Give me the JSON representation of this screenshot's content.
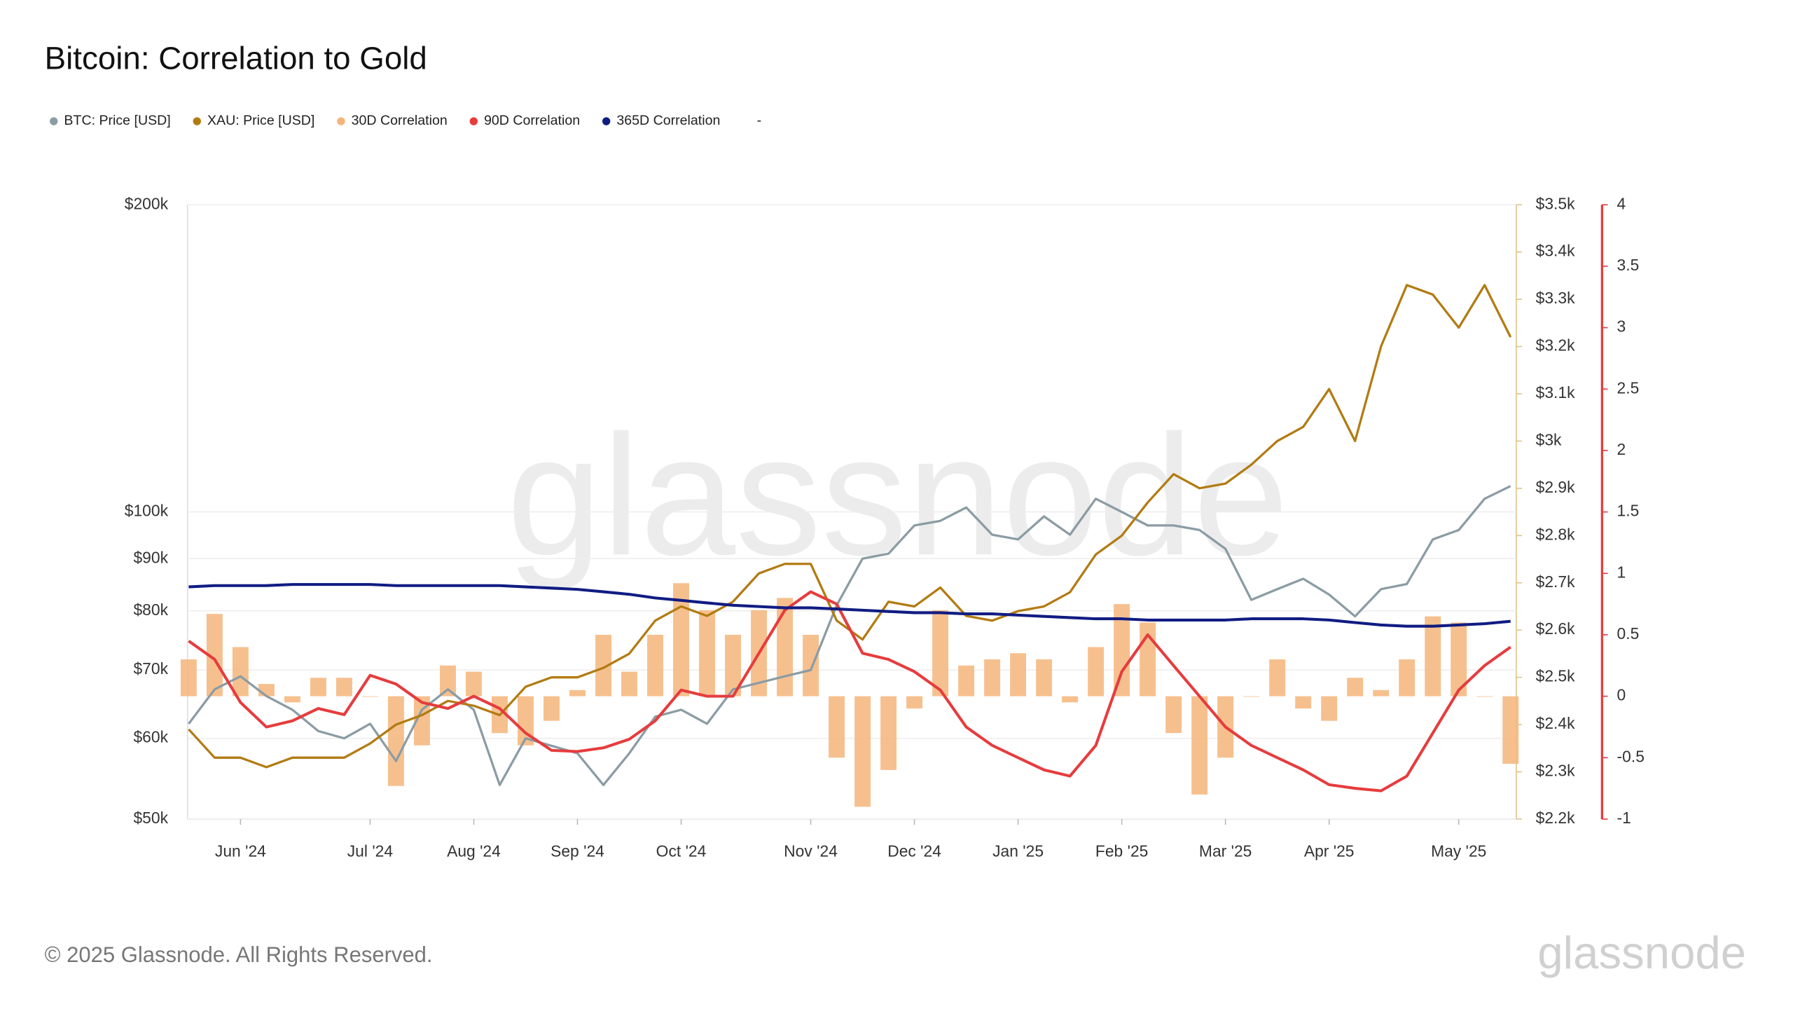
{
  "chart_data": {
    "type": "combo",
    "title": "Bitcoin: Correlation to Gold",
    "watermark": "glassnode",
    "footer": "© 2025 Glassnode. All Rights Reserved.",
    "logo": "glassnode",
    "legend_note": "-",
    "categories": [
      null,
      null,
      "Jun '24",
      null,
      null,
      null,
      null,
      "Jul '24",
      null,
      null,
      null,
      "Aug '24",
      null,
      null,
      null,
      "Sep '24",
      null,
      null,
      null,
      "Oct '24",
      null,
      null,
      null,
      null,
      "Nov '24",
      null,
      null,
      null,
      "Dec '24",
      null,
      null,
      null,
      "Jan '25",
      null,
      null,
      null,
      "Feb '25",
      null,
      null,
      null,
      "Mar '25",
      null,
      null,
      null,
      "Apr '25",
      null,
      null,
      null,
      null,
      "May '25",
      null,
      null
    ],
    "ylog": true,
    "ylim": [
      50000,
      200000
    ],
    "yticks": [
      {
        "value": 50000,
        "label": "$50k"
      },
      {
        "value": 60000,
        "label": "$60k"
      },
      {
        "value": 70000,
        "label": "$70k"
      },
      {
        "value": 80000,
        "label": "$80k"
      },
      {
        "value": 90000,
        "label": "$90k"
      },
      {
        "value": 100000,
        "label": "$100k"
      },
      {
        "value": 200000,
        "label": "$200k"
      }
    ],
    "y2lim": [
      2200,
      3500
    ],
    "y2ticks": [
      {
        "value": 2200,
        "label": "$2.2k"
      },
      {
        "value": 2300,
        "label": "$2.3k"
      },
      {
        "value": 2400,
        "label": "$2.4k"
      },
      {
        "value": 2500,
        "label": "$2.5k"
      },
      {
        "value": 2600,
        "label": "$2.6k"
      },
      {
        "value": 2700,
        "label": "$2.7k"
      },
      {
        "value": 2800,
        "label": "$2.8k"
      },
      {
        "value": 2900,
        "label": "$2.9k"
      },
      {
        "value": 3000,
        "label": "$3k"
      },
      {
        "value": 3100,
        "label": "$3.1k"
      },
      {
        "value": 3200,
        "label": "$3.2k"
      },
      {
        "value": 3300,
        "label": "$3.3k"
      },
      {
        "value": 3400,
        "label": "$3.4k"
      },
      {
        "value": 3500,
        "label": "$3.5k"
      }
    ],
    "y3lim": [
      -1,
      4
    ],
    "y3ticks": [
      -1,
      -0.5,
      0,
      0.5,
      1,
      1.5,
      2,
      2.5,
      3,
      3.5,
      4
    ],
    "grid": true,
    "series": [
      {
        "name": "BTC: Price [USD]",
        "type": "line",
        "axis": "y",
        "color": "#8b9ca4",
        "values": [
          62000,
          67000,
          69000,
          66000,
          64000,
          61000,
          60000,
          62000,
          57000,
          64000,
          67000,
          64000,
          54000,
          60000,
          59000,
          58000,
          54000,
          58000,
          63000,
          64000,
          62000,
          67000,
          68000,
          69000,
          70000,
          81000,
          90000,
          91000,
          97000,
          98000,
          101000,
          95000,
          94000,
          99000,
          95000,
          103000,
          100000,
          97000,
          97000,
          96000,
          92000,
          82000,
          84000,
          86000,
          83000,
          79000,
          84000,
          85000,
          94000,
          96000,
          103000,
          106000
        ]
      },
      {
        "name": "XAU: Price [USD]",
        "type": "line",
        "axis": "y2",
        "color": "#b27b12",
        "values": [
          2390,
          2330,
          2330,
          2310,
          2330,
          2330,
          2330,
          2360,
          2400,
          2420,
          2450,
          2440,
          2420,
          2480,
          2500,
          2500,
          2520,
          2550,
          2620,
          2650,
          2630,
          2660,
          2720,
          2740,
          2740,
          2620,
          2580,
          2660,
          2650,
          2690,
          2630,
          2620,
          2640,
          2650,
          2680,
          2760,
          2800,
          2870,
          2930,
          2900,
          2910,
          2950,
          3000,
          3030,
          3110,
          3000,
          3200,
          3330,
          3310,
          3240,
          3330,
          3220
        ]
      },
      {
        "name": "30D Correlation",
        "type": "bar",
        "axis": "y3",
        "color": "#f5b57a",
        "values": [
          0.3,
          0.67,
          0.4,
          0.1,
          -0.05,
          0.15,
          0.15,
          0.0,
          -0.73,
          -0.4,
          0.25,
          0.2,
          -0.3,
          -0.4,
          -0.2,
          0.05,
          0.5,
          0.2,
          0.5,
          0.92,
          0.7,
          0.5,
          0.7,
          0.8,
          0.5,
          -0.5,
          -0.9,
          -0.6,
          -0.1,
          0.7,
          0.25,
          0.3,
          0.35,
          0.3,
          -0.05,
          0.4,
          0.75,
          0.6,
          -0.3,
          -0.8,
          -0.5,
          0.0,
          0.3,
          -0.1,
          -0.2,
          0.15,
          0.05,
          0.3,
          0.65,
          0.6,
          0.0,
          -0.55
        ]
      },
      {
        "name": "90D Correlation",
        "type": "line",
        "axis": "y3",
        "color": "#e63c3e",
        "values": [
          0.45,
          0.3,
          -0.05,
          -0.25,
          -0.2,
          -0.1,
          -0.15,
          0.17,
          0.1,
          -0.05,
          -0.1,
          0.0,
          -0.1,
          -0.3,
          -0.44,
          -0.45,
          -0.42,
          -0.35,
          -0.2,
          0.05,
          0.0,
          0.0,
          0.35,
          0.7,
          0.85,
          0.75,
          0.35,
          0.3,
          0.2,
          0.05,
          -0.25,
          -0.4,
          -0.5,
          -0.6,
          -0.65,
          -0.4,
          0.2,
          0.5,
          0.25,
          0.0,
          -0.25,
          -0.4,
          -0.5,
          -0.6,
          -0.72,
          -0.75,
          -0.77,
          -0.65,
          -0.3,
          0.05,
          0.25,
          0.4
        ]
      },
      {
        "name": "365D Correlation",
        "type": "line",
        "axis": "y3",
        "color": "#101c82",
        "values": [
          0.89,
          0.9,
          0.9,
          0.9,
          0.91,
          0.91,
          0.91,
          0.91,
          0.9,
          0.9,
          0.9,
          0.9,
          0.9,
          0.89,
          0.88,
          0.87,
          0.85,
          0.83,
          0.8,
          0.78,
          0.76,
          0.74,
          0.73,
          0.72,
          0.72,
          0.71,
          0.7,
          0.69,
          0.68,
          0.68,
          0.67,
          0.67,
          0.66,
          0.65,
          0.64,
          0.63,
          0.63,
          0.62,
          0.62,
          0.62,
          0.62,
          0.63,
          0.63,
          0.63,
          0.62,
          0.6,
          0.58,
          0.57,
          0.57,
          0.58,
          0.59,
          0.61
        ]
      }
    ]
  }
}
